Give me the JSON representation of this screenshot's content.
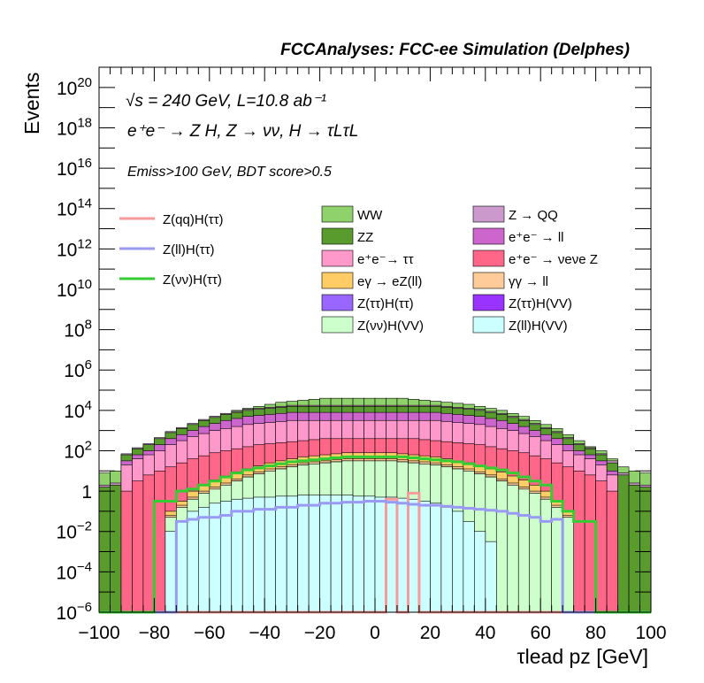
{
  "chart_data": {
    "type": "bar",
    "title": "FCCAnalyses: FCC-ee Simulation (Delphes)",
    "xlabel": "τlead pz [GeV]",
    "ylabel": "Events",
    "xlim": [
      -100,
      100
    ],
    "ylog": true,
    "ylim": [
      1e-06,
      1e+21
    ],
    "bin_width": 4,
    "annotations": {
      "line1": "√s = 240 GeV, L=10.8 ab⁻¹",
      "line2": "e⁺e⁻ → Z H, Z → νν, H → τLτL",
      "line3": "Emiss>100 GeV, BDT score>0.5"
    },
    "x_ticks": [
      -100,
      -80,
      -60,
      -40,
      -20,
      0,
      20,
      40,
      60,
      80,
      100
    ],
    "x_tick_labels": [
      "−100",
      "−80",
      "−60",
      "−40",
      "−20",
      "0",
      "20",
      "40",
      "60",
      "80",
      "100"
    ],
    "y_ticks": [
      {
        "value": 1e-06,
        "base": "10",
        "exp": "−6"
      },
      {
        "value": 0.0001,
        "base": "10",
        "exp": "−4"
      },
      {
        "value": 0.01,
        "base": "10",
        "exp": "−2"
      },
      {
        "value": 1,
        "base": "1",
        "exp": ""
      },
      {
        "value": 100.0,
        "base": "10",
        "exp": "2"
      },
      {
        "value": 10000.0,
        "base": "10",
        "exp": "4"
      },
      {
        "value": 1000000.0,
        "base": "10",
        "exp": "6"
      },
      {
        "value": 100000000.0,
        "base": "10",
        "exp": "8"
      },
      {
        "value": 10000000000.0,
        "base": "10",
        "exp": "10"
      },
      {
        "value": 1000000000000.0,
        "base": "10",
        "exp": "12"
      },
      {
        "value": 100000000000000.0,
        "base": "10",
        "exp": "14"
      },
      {
        "value": 1e+16,
        "base": "10",
        "exp": "16"
      },
      {
        "value": 1e+18,
        "base": "10",
        "exp": "18"
      },
      {
        "value": 1e+20,
        "base": "10",
        "exp": "20"
      }
    ],
    "legend": {
      "signal_position": "top-left",
      "background_position": "top-right",
      "signals": [
        {
          "name": "Z(qq)H(ττ)",
          "color": "#f89a9a"
        },
        {
          "name": "Z(ll)H(ττ)",
          "color": "#9a9af2"
        },
        {
          "name": "Z(νν)H(ττ)",
          "color": "#33cc33"
        }
      ],
      "backgrounds": [
        {
          "name": "WW",
          "color": "#8fd16a"
        },
        {
          "name": "Z → QQ",
          "color": "#cc99cc"
        },
        {
          "name": "ZZ",
          "color": "#5a9b2e"
        },
        {
          "name": "e⁺e⁻ → ll",
          "color": "#cc66cc"
        },
        {
          "name": "e⁺e⁻→ ττ",
          "color": "#ff99cc"
        },
        {
          "name": "e⁺e⁻ → νeνe Z",
          "color": "#ff6688"
        },
        {
          "name": "eγ → eZ(ll)",
          "color": "#ffcc66"
        },
        {
          "name": "γγ → ll",
          "color": "#ffcc99"
        },
        {
          "name": "Z(ττ)H(ττ)",
          "color": "#9966ff"
        },
        {
          "name": "Z(ττ)H(VV)",
          "color": "#9933ff"
        },
        {
          "name": "Z(νν)H(VV)",
          "color": "#ccffcc"
        },
        {
          "name": "Z(ll)H(VV)",
          "color": "#ccffff"
        }
      ]
    },
    "stack_order_bottom_to_top": [
      "Z(ll)H(VV)",
      "Z(νν)H(VV)",
      "Z(ττ)H(VV)",
      "Z(ττ)H(ττ)",
      "γγ → ll",
      "eγ → eZ(ll)",
      "e⁺e⁻ → νeνe Z",
      "e⁺e⁻→ ττ",
      "e⁺e⁻ → ll",
      "ZZ",
      "Z → QQ",
      "WW"
    ],
    "stack_top_log10": {
      "Z(ll)H(VV)": [
        -6,
        -6,
        -6,
        -6,
        -6,
        -6,
        -2,
        -1.5,
        -1,
        -0.8,
        -0.6,
        -0.5,
        -0.4,
        -0.35,
        -0.3,
        -0.3,
        -0.25,
        -0.25,
        -0.2,
        -0.2,
        -0.2,
        -0.2,
        -0.2,
        -0.25,
        -0.25,
        -0.3,
        -0.3,
        -0.35,
        -0.4,
        -0.5,
        -0.6,
        -0.8,
        -1,
        -1.5,
        -2,
        -2.5,
        -6,
        -6,
        -6,
        -6,
        -6,
        -6,
        -6,
        -6,
        -6,
        -6,
        -6,
        -6,
        -6,
        -6
      ],
      "Z(νν)H(VV)": [
        -6,
        -6,
        -6,
        -6,
        -6,
        -6,
        -1.3,
        -0.8,
        -0.4,
        -0.1,
        0.1,
        0.3,
        0.5,
        0.7,
        0.85,
        1,
        1.1,
        1.2,
        1.3,
        1.35,
        1.4,
        1.45,
        1.5,
        1.5,
        1.5,
        1.5,
        1.5,
        1.45,
        1.4,
        1.35,
        1.3,
        1.2,
        1.1,
        1,
        0.85,
        0.7,
        0.5,
        0.3,
        0.1,
        -0.1,
        -0.4,
        -0.8,
        -1.3,
        -6,
        -6,
        -6,
        -6,
        -6,
        -6,
        -6
      ],
      "Z(ττ)H(VV)": [
        -6,
        -6,
        -6,
        -6,
        -6,
        -6,
        -1.3,
        -0.8,
        -0.4,
        -0.1,
        0.1,
        0.3,
        0.5,
        0.7,
        0.85,
        1,
        1.1,
        1.2,
        1.3,
        1.35,
        1.4,
        1.45,
        1.5,
        1.5,
        1.5,
        1.5,
        1.5,
        1.45,
        1.4,
        1.35,
        1.3,
        1.2,
        1.1,
        1,
        0.85,
        0.7,
        0.5,
        0.3,
        0.1,
        -0.1,
        -0.4,
        -0.8,
        -1.3,
        -6,
        -6,
        -6,
        -6,
        -6,
        -6,
        -6
      ],
      "Z(ττ)H(ττ)": [
        -6,
        -6,
        -6,
        -6,
        -6,
        -6,
        -1.3,
        -0.8,
        -0.4,
        -0.1,
        0.1,
        0.3,
        0.5,
        0.7,
        0.85,
        1,
        1.1,
        1.2,
        1.3,
        1.35,
        1.4,
        1.45,
        1.5,
        1.5,
        1.5,
        1.5,
        1.5,
        1.45,
        1.4,
        1.35,
        1.3,
        1.2,
        1.1,
        1,
        0.85,
        0.7,
        0.5,
        0.3,
        0.1,
        -0.1,
        -0.4,
        -0.8,
        -1.3,
        -6,
        -6,
        -6,
        -6,
        -6,
        -6,
        -6
      ],
      "γγ → ll": [
        -6,
        -6,
        -6,
        -6,
        -6,
        -6,
        -1.2,
        -0.7,
        -0.3,
        0,
        0.2,
        0.4,
        0.6,
        0.8,
        0.95,
        1.1,
        1.2,
        1.3,
        1.4,
        1.45,
        1.5,
        1.55,
        1.6,
        1.6,
        1.6,
        1.6,
        1.6,
        1.55,
        1.5,
        1.45,
        1.4,
        1.3,
        1.2,
        1.1,
        0.95,
        0.8,
        0.6,
        0.4,
        0.2,
        0,
        -0.3,
        -0.7,
        -1.2,
        -6,
        -6,
        -6,
        -6,
        -6,
        -6,
        -6
      ],
      "eγ → eZ(ll)": [
        -6,
        -6,
        -6,
        -6,
        -6,
        -6,
        -1,
        -0.5,
        0,
        0.3,
        0.55,
        0.75,
        0.95,
        1.1,
        1.25,
        1.4,
        1.5,
        1.6,
        1.7,
        1.75,
        1.8,
        1.85,
        1.9,
        1.9,
        1.9,
        1.9,
        1.9,
        1.85,
        1.8,
        1.75,
        1.7,
        1.6,
        1.5,
        1.4,
        1.25,
        1.1,
        0.95,
        0.75,
        0.55,
        0.3,
        0,
        -0.5,
        -1,
        -6,
        -6,
        -6,
        -6,
        -6,
        -6,
        -6
      ],
      "e⁺e⁻ → νeνe Z": [
        -6,
        -6,
        0,
        0.5,
        0.8,
        1,
        1.2,
        1.4,
        1.6,
        1.75,
        1.9,
        2,
        2.1,
        2.2,
        2.3,
        2.35,
        2.4,
        2.45,
        2.5,
        2.55,
        2.6,
        2.6,
        2.6,
        2.6,
        2.6,
        2.6,
        2.6,
        2.6,
        2.6,
        2.55,
        2.5,
        2.45,
        2.4,
        2.35,
        2.3,
        2.2,
        2.1,
        2,
        1.9,
        1.75,
        1.6,
        1.4,
        1.2,
        1,
        0.8,
        0.5,
        0,
        -6,
        -6,
        -6
      ],
      "e⁺e⁻→ ττ": [
        -6,
        -6,
        1.3,
        1.6,
        1.8,
        2,
        2.3,
        2.5,
        2.7,
        2.85,
        3,
        3.1,
        3.2,
        3.3,
        3.35,
        3.4,
        3.45,
        3.5,
        3.5,
        3.5,
        3.5,
        3.5,
        3.5,
        3.5,
        3.5,
        3.5,
        3.5,
        3.5,
        3.5,
        3.5,
        3.5,
        3.45,
        3.4,
        3.35,
        3.3,
        3.2,
        3.1,
        3,
        2.85,
        2.7,
        2.5,
        2.3,
        2,
        1.8,
        1.6,
        1.3,
        0.8,
        -6,
        -6,
        -6
      ],
      "e⁺e⁻ → ll": [
        -6,
        -6,
        1.5,
        1.8,
        2,
        2.3,
        2.6,
        2.8,
        3,
        3.2,
        3.35,
        3.5,
        3.6,
        3.7,
        3.75,
        3.8,
        3.85,
        3.9,
        3.9,
        3.9,
        3.9,
        3.9,
        3.9,
        3.9,
        3.9,
        3.9,
        3.9,
        3.9,
        3.9,
        3.9,
        3.9,
        3.85,
        3.8,
        3.75,
        3.7,
        3.6,
        3.5,
        3.35,
        3.2,
        3,
        2.8,
        2.6,
        2.3,
        2,
        1.8,
        1.5,
        1,
        -6,
        -6,
        -6
      ],
      "ZZ": [
        0.2,
        0.3,
        1.8,
        2.1,
        2.3,
        2.6,
        2.9,
        3.1,
        3.3,
        3.5,
        3.65,
        3.8,
        3.9,
        4,
        4.05,
        4.1,
        4.15,
        4.2,
        4.2,
        4.2,
        4.2,
        4.2,
        4.2,
        4.2,
        4.2,
        4.2,
        4.2,
        4.2,
        4.2,
        4.2,
        4.2,
        4.15,
        4.1,
        4.05,
        4,
        3.9,
        3.8,
        3.65,
        3.5,
        3.3,
        3.1,
        2.9,
        2.6,
        2.3,
        2.1,
        1.8,
        1.4,
        0.8,
        0.3,
        0.2
      ],
      "Z → QQ": [
        0.3,
        0.4,
        1.85,
        2.15,
        2.35,
        2.65,
        2.95,
        3.15,
        3.35,
        3.55,
        3.7,
        3.85,
        3.95,
        4.05,
        4.1,
        4.15,
        4.2,
        4.25,
        4.25,
        4.25,
        4.25,
        4.25,
        4.25,
        4.25,
        4.25,
        4.25,
        4.25,
        4.25,
        4.25,
        4.25,
        4.25,
        4.2,
        4.15,
        4.1,
        4.05,
        3.95,
        3.85,
        3.7,
        3.55,
        3.35,
        3.15,
        2.95,
        2.65,
        2.35,
        2.15,
        1.85,
        1.5,
        0.9,
        0.4,
        0.3
      ],
      "WW": [
        0.9,
        1,
        1.3,
        1.5,
        2.2,
        2.5,
        2.8,
        3.1,
        3.3,
        3.5,
        3.7,
        3.85,
        4,
        4.1,
        4.2,
        4.3,
        4.4,
        4.45,
        4.5,
        4.55,
        4.6,
        4.6,
        4.6,
        4.6,
        4.6,
        4.6,
        4.6,
        4.6,
        4.55,
        4.5,
        4.45,
        4.4,
        4.35,
        4.3,
        4.2,
        4.1,
        4,
        3.85,
        3.7,
        3.5,
        3.3,
        3.1,
        2.8,
        2.5,
        2.2,
        2,
        1.6,
        1.2,
        1,
        0.9
      ]
    },
    "signals_log10": {
      "Z(qq)H(ττ)": [
        -6,
        -6,
        -6,
        -6,
        -6,
        -6,
        -6,
        -6,
        -6,
        -6,
        -6,
        -6,
        -6,
        -6,
        -6,
        -6,
        -6,
        -6,
        -6,
        -6,
        -6,
        -6,
        -6,
        -6,
        -6,
        -6,
        -0.4,
        -6,
        -0.1,
        -6,
        -6,
        -6,
        -6,
        -6,
        -6,
        -6,
        -6,
        -6,
        -6,
        -6,
        -6,
        -6,
        -6,
        -6,
        -6,
        -6,
        -6,
        -6,
        -6,
        -6
      ],
      "Z(ll)H(ττ)": [
        -6,
        -6,
        -6,
        -6,
        -6,
        -6,
        -6,
        -1.5,
        -1.4,
        -1.3,
        -1.3,
        -1.2,
        -1,
        -1,
        -0.9,
        -0.9,
        -0.8,
        -0.8,
        -0.7,
        -0.7,
        -0.6,
        -0.6,
        -0.55,
        -0.55,
        -0.5,
        -0.5,
        -0.55,
        -0.6,
        -0.65,
        -0.7,
        -0.7,
        -0.75,
        -0.8,
        -0.85,
        -0.9,
        -0.95,
        -1,
        -1.1,
        -1.2,
        -1.3,
        -1.5,
        -1.4,
        -6,
        -6,
        -6,
        -6,
        -6,
        -6,
        -6,
        -6
      ],
      "Z(νν)H(ττ)": [
        -6,
        -6,
        -6,
        -6,
        -6,
        -0.5,
        -0.5,
        0,
        0.1,
        0.3,
        0.5,
        0.7,
        0.9,
        1.05,
        1.15,
        1.25,
        1.35,
        1.45,
        1.5,
        1.55,
        1.6,
        1.65,
        1.7,
        1.7,
        1.7,
        1.7,
        1.7,
        1.7,
        1.65,
        1.6,
        1.55,
        1.5,
        1.45,
        1.35,
        1.25,
        1.15,
        1.05,
        0.9,
        0.7,
        0.5,
        0.3,
        -0.5,
        -1,
        -1.5,
        -1.5,
        -6,
        -6,
        -6,
        -6,
        -6
      ]
    }
  }
}
